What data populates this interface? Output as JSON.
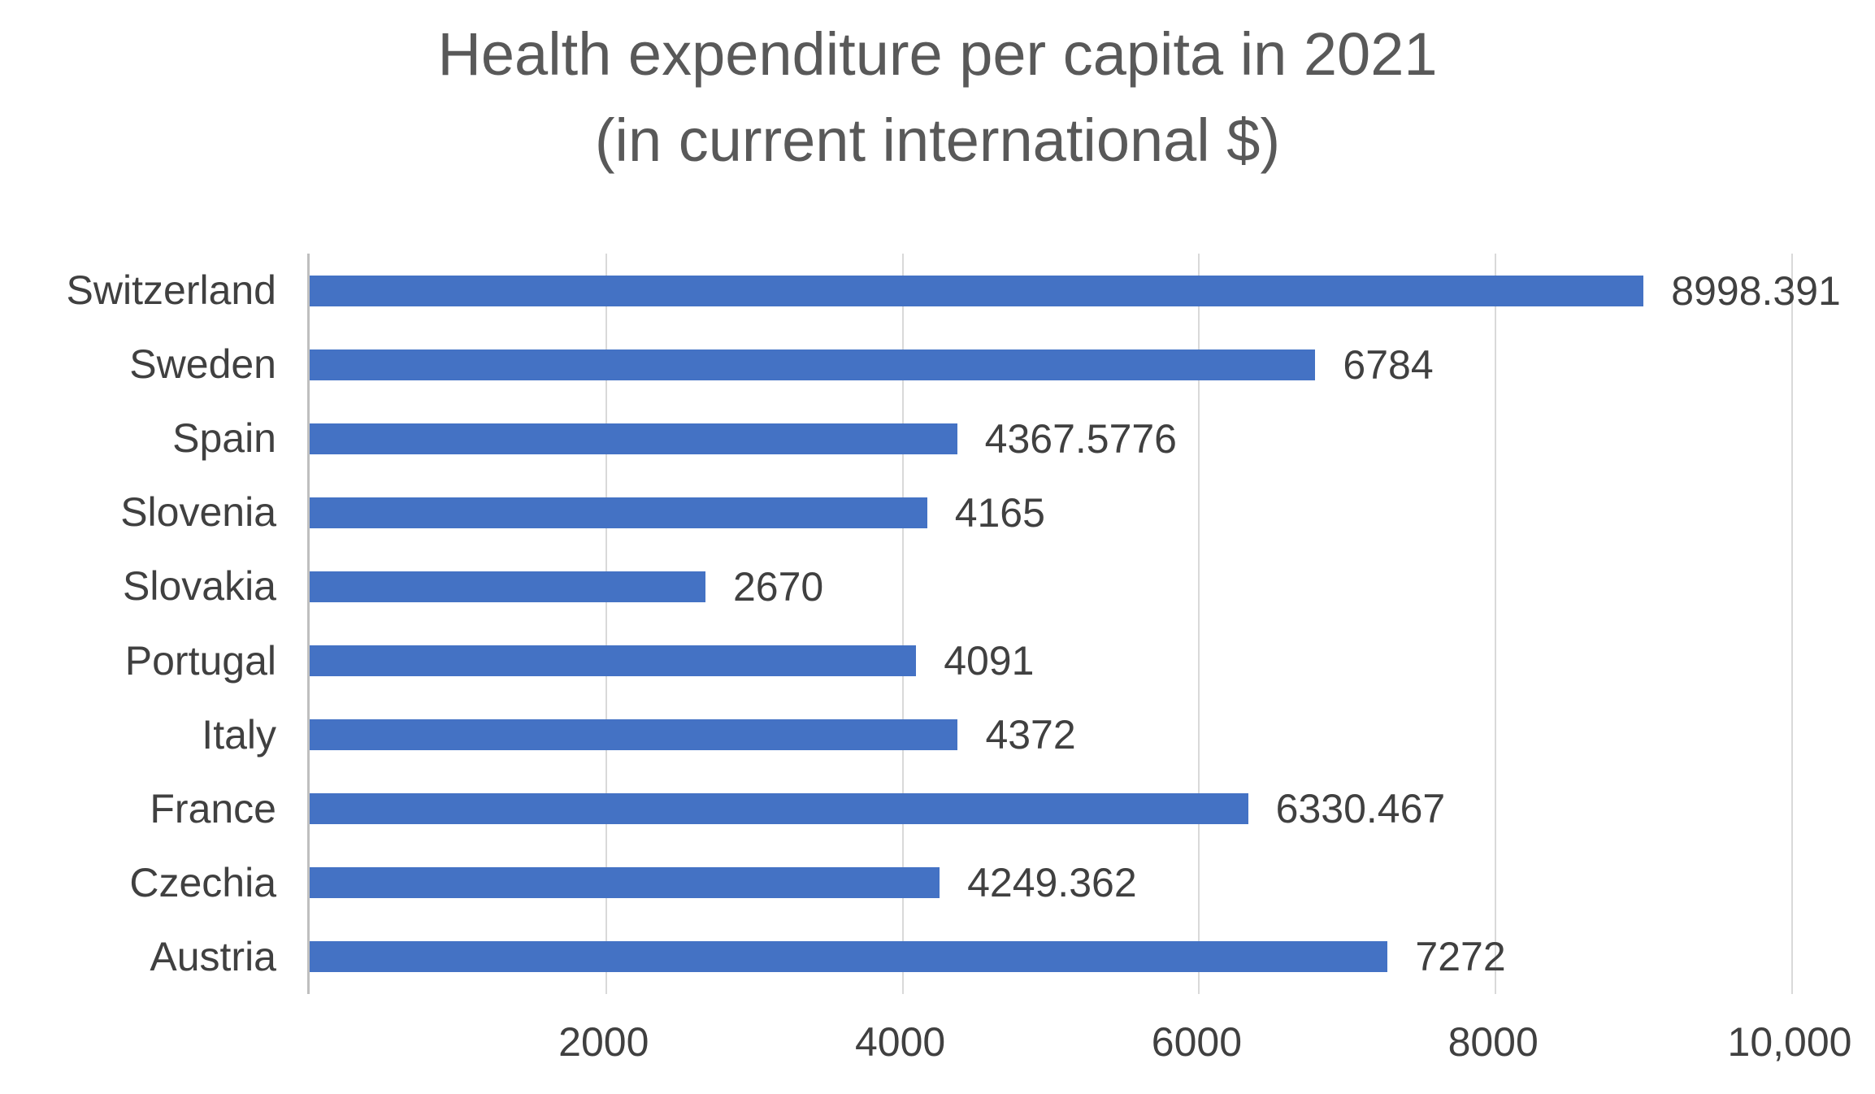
{
  "chart_data": {
    "type": "bar",
    "orientation": "horizontal",
    "title": "Health expenditure per capita in 2021 (in current international $)",
    "title_lines": [
      "Health expenditure per capita in 2021",
      "(in current international $)"
    ],
    "categories": [
      "Switzerland",
      "Sweden",
      "Spain",
      "Slovenia",
      "Slovakia",
      "Portugal",
      "Italy",
      "France",
      "Czechia",
      "Austria"
    ],
    "values": [
      8998.391,
      6784,
      4367.5776,
      4165,
      2670,
      4091,
      4372,
      6330.467,
      4249.362,
      7272
    ],
    "data_labels": [
      "8998.391",
      "6784",
      "4367.5776",
      "4165",
      "2670",
      "4091",
      "4372",
      "6330.467",
      "4249.362",
      "7272"
    ],
    "xlabel": "",
    "ylabel": "",
    "xlim": [
      0,
      10000
    ],
    "x_ticks": [
      {
        "value": 2000,
        "label": "2000"
      },
      {
        "value": 4000,
        "label": "4000"
      },
      {
        "value": 6000,
        "label": "6000"
      },
      {
        "value": 8000,
        "label": "8000"
      },
      {
        "value": 10000,
        "label": "10,000"
      }
    ],
    "grid": true,
    "legend": false,
    "colors": {
      "bar": "#4472C4",
      "gridline": "#D9D9D9",
      "axis_line": "#BFBFBF",
      "title_text": "#595959",
      "label_text": "#404040"
    }
  }
}
